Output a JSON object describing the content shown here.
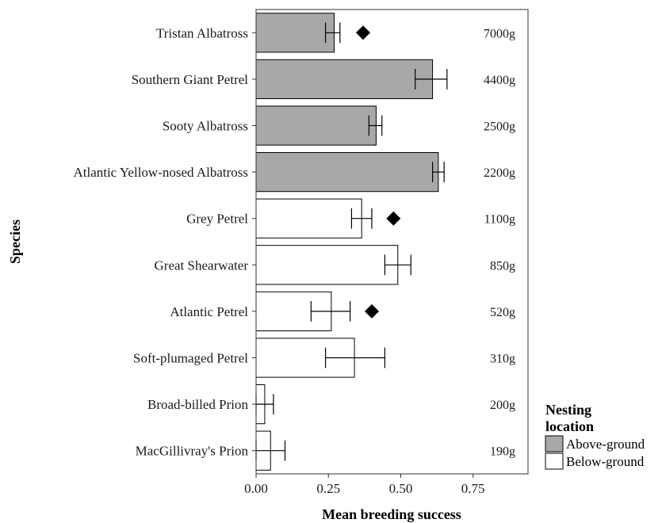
{
  "chart_data": {
    "type": "bar",
    "orientation": "horizontal",
    "xlabel": "Mean breeding success",
    "ylabel": "Species",
    "xlim": [
      0,
      0.94
    ],
    "xticks": [
      0,
      0.25,
      0.5,
      0.75
    ],
    "xtick_labels": [
      "0.00",
      "0.25",
      "0.50",
      "0.75"
    ],
    "grid": false,
    "legend": {
      "title_line1": "Nesting",
      "title_line2": "location",
      "placement": "bottom-right outside",
      "entries": [
        {
          "key": "above",
          "label": "Above-ground",
          "color": "#a8a8a8"
        },
        {
          "key": "below",
          "label": "Below-ground",
          "color": "#ffffff"
        }
      ]
    },
    "categories": [
      {
        "species": "Tristan Albatross",
        "mass": "7000g",
        "value": 0.27,
        "err_low": 0.24,
        "err_high": 0.29,
        "nesting": "above",
        "diamond": 0.37
      },
      {
        "species": "Southern Giant Petrel",
        "mass": "4400g",
        "value": 0.61,
        "err_low": 0.55,
        "err_high": 0.66,
        "nesting": "above",
        "diamond": null
      },
      {
        "species": "Sooty Albatross",
        "mass": "2500g",
        "value": 0.415,
        "err_low": 0.39,
        "err_high": 0.435,
        "nesting": "above",
        "diamond": null
      },
      {
        "species": "Atlantic Yellow-nosed Albatross",
        "mass": "2200g",
        "value": 0.63,
        "err_low": 0.61,
        "err_high": 0.65,
        "nesting": "above",
        "diamond": null
      },
      {
        "species": "Grey Petrel",
        "mass": "1100g",
        "value": 0.365,
        "err_low": 0.33,
        "err_high": 0.4,
        "nesting": "below",
        "diamond": 0.475
      },
      {
        "species": "Great Shearwater",
        "mass": "850g",
        "value": 0.49,
        "err_low": 0.445,
        "err_high": 0.535,
        "nesting": "below",
        "diamond": null
      },
      {
        "species": "Atlantic Petrel",
        "mass": "520g",
        "value": 0.26,
        "err_low": 0.19,
        "err_high": 0.325,
        "nesting": "below",
        "diamond": 0.4
      },
      {
        "species": "Soft-plumaged Petrel",
        "mass": "310g",
        "value": 0.34,
        "err_low": 0.24,
        "err_high": 0.445,
        "nesting": "below",
        "diamond": null
      },
      {
        "species": "Broad-billed Prion",
        "mass": "200g",
        "value": 0.03,
        "err_low": 0.0,
        "err_high": 0.06,
        "nesting": "below",
        "diamond": null
      },
      {
        "species": "MacGillivray's Prion",
        "mass": "190g",
        "value": 0.05,
        "err_low": 0.0,
        "err_high": 0.1,
        "nesting": "below",
        "diamond": null
      }
    ]
  }
}
